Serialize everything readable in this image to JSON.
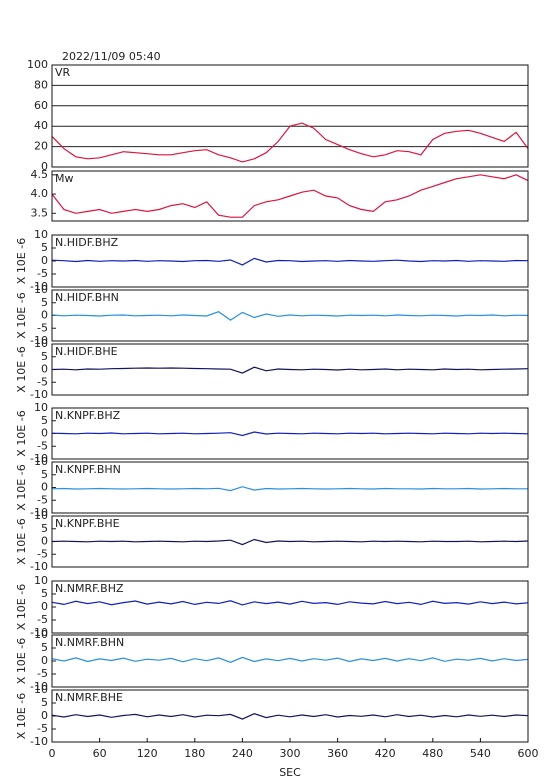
{
  "chart_data": [
    {
      "type": "line",
      "title": "2022/11/09 05:40",
      "ylim": [
        0,
        100
      ],
      "yticks": [
        0,
        20,
        40,
        60,
        80,
        100
      ],
      "grid": true,
      "x": [
        0,
        15,
        30,
        45,
        60,
        75,
        90,
        105,
        120,
        135,
        150,
        165,
        180,
        195,
        210,
        225,
        240,
        255,
        270,
        285,
        300,
        315,
        330,
        345,
        360,
        375,
        390,
        405,
        420,
        435,
        450,
        465,
        480,
        495,
        510,
        525,
        540,
        555,
        570,
        585,
        600
      ],
      "series": [
        {
          "name": "VR",
          "color": "#dc143c",
          "values": [
            30,
            18,
            10,
            8,
            9,
            12,
            15,
            14,
            13,
            12,
            12,
            14,
            16,
            17,
            12,
            9,
            5,
            8,
            14,
            25,
            40,
            43,
            38,
            27,
            22,
            17,
            13,
            10,
            12,
            16,
            15,
            12,
            27,
            33,
            35,
            36,
            33,
            29,
            25,
            34,
            18
          ]
        }
      ]
    },
    {
      "type": "line",
      "ylim": [
        3.3,
        4.6
      ],
      "yticks": [
        3.5,
        {
          "value": 4,
          "label": "4.0"
        },
        4.5
      ],
      "grid": false,
      "x": [
        0,
        15,
        30,
        45,
        60,
        75,
        90,
        105,
        120,
        135,
        150,
        165,
        180,
        195,
        210,
        225,
        240,
        255,
        270,
        285,
        300,
        315,
        330,
        345,
        360,
        375,
        390,
        405,
        420,
        435,
        450,
        465,
        480,
        495,
        510,
        525,
        540,
        555,
        570,
        585,
        600
      ],
      "series": [
        {
          "name": "Mw",
          "color": "#dc143c",
          "values": [
            4.0,
            3.6,
            3.5,
            3.55,
            3.6,
            3.5,
            3.55,
            3.6,
            3.55,
            3.6,
            3.7,
            3.75,
            3.65,
            3.8,
            3.45,
            3.4,
            3.4,
            3.7,
            3.8,
            3.85,
            3.95,
            4.05,
            4.1,
            3.95,
            3.9,
            3.7,
            3.6,
            3.55,
            3.8,
            3.85,
            3.95,
            4.1,
            4.2,
            4.3,
            4.4,
            4.45,
            4.5,
            4.45,
            4.4,
            4.5,
            4.35
          ]
        }
      ]
    },
    {
      "type": "line",
      "ylabel": "X 10E -6",
      "ylim": [
        -10,
        10
      ],
      "yticks": [
        -10,
        -5,
        0,
        5,
        10
      ],
      "x": [
        0,
        15,
        30,
        45,
        60,
        75,
        90,
        105,
        120,
        135,
        150,
        165,
        180,
        195,
        210,
        225,
        240,
        255,
        270,
        285,
        300,
        315,
        330,
        345,
        360,
        375,
        390,
        405,
        420,
        435,
        450,
        465,
        480,
        495,
        510,
        525,
        540,
        555,
        570,
        585,
        600
      ],
      "series": [
        {
          "name": "N.HIDF.BHZ",
          "color": "#1020b8",
          "values": [
            0.3,
            0.1,
            -0.2,
            0.2,
            -0.1,
            0.1,
            0.0,
            0.2,
            -0.1,
            0.1,
            0.0,
            -0.2,
            0.1,
            0.2,
            -0.1,
            0.4,
            -1.5,
            1.0,
            -0.4,
            0.2,
            0.1,
            -0.2,
            0.0,
            0.1,
            -0.1,
            0.2,
            0.0,
            -0.1,
            0.1,
            0.3,
            0.0,
            -0.2,
            0.1,
            0.0,
            0.2,
            -0.1,
            0.1,
            0.0,
            -0.1,
            0.2,
            0.1
          ]
        }
      ]
    },
    {
      "type": "line",
      "ylabel": "X 10E -6",
      "ylim": [
        -10,
        10
      ],
      "yticks": [
        -10,
        -5,
        0,
        5,
        10
      ],
      "x": [
        0,
        15,
        30,
        45,
        60,
        75,
        90,
        105,
        120,
        135,
        150,
        165,
        180,
        195,
        210,
        225,
        240,
        255,
        270,
        285,
        300,
        315,
        330,
        345,
        360,
        375,
        390,
        405,
        420,
        435,
        450,
        465,
        480,
        495,
        510,
        525,
        540,
        555,
        570,
        585,
        600
      ],
      "series": [
        {
          "name": "N.HIDF.BHN",
          "color": "#2a8fe0",
          "values": [
            0.2,
            -0.1,
            0.1,
            0.0,
            -0.2,
            0.1,
            0.2,
            -0.1,
            0.0,
            0.1,
            -0.1,
            0.2,
            0.0,
            -0.2,
            1.5,
            -1.8,
            1.2,
            -0.8,
            0.6,
            -0.3,
            0.2,
            -0.1,
            0.1,
            0.0,
            -0.2,
            0.1,
            0.0,
            0.1,
            -0.1,
            0.2,
            0.0,
            -0.1,
            0.1,
            0.0,
            -0.2,
            0.1,
            0.0,
            0.2,
            -0.1,
            0.1,
            0.0
          ]
        }
      ]
    },
    {
      "type": "line",
      "ylabel": "X 10E -6",
      "ylim": [
        -10,
        10
      ],
      "yticks": [
        -10,
        -5,
        0,
        5,
        10
      ],
      "x": [
        0,
        15,
        30,
        45,
        60,
        75,
        90,
        105,
        120,
        135,
        150,
        165,
        180,
        195,
        210,
        225,
        240,
        255,
        270,
        285,
        300,
        315,
        330,
        345,
        360,
        375,
        390,
        405,
        420,
        435,
        450,
        465,
        480,
        495,
        510,
        525,
        540,
        555,
        570,
        585,
        600
      ],
      "series": [
        {
          "name": "N.HIDF.BHE",
          "color": "#14145e",
          "values": [
            0.0,
            0.1,
            -0.1,
            0.2,
            0.1,
            0.3,
            0.4,
            0.5,
            0.6,
            0.5,
            0.6,
            0.5,
            0.4,
            0.3,
            0.2,
            0.1,
            -1.4,
            0.9,
            -0.5,
            0.2,
            0.0,
            -0.1,
            0.1,
            0.0,
            -0.2,
            0.1,
            -0.1,
            0.0,
            0.2,
            -0.1,
            0.1,
            0.0,
            -0.1,
            0.2,
            0.0,
            0.1,
            -0.1,
            0.0,
            0.1,
            0.2,
            0.3
          ]
        }
      ]
    },
    {
      "type": "line",
      "ylabel": "X 10E -6",
      "ylim": [
        -10,
        10
      ],
      "yticks": [
        -10,
        -5,
        0,
        5,
        10
      ],
      "x": [
        0,
        15,
        30,
        45,
        60,
        75,
        90,
        105,
        120,
        135,
        150,
        165,
        180,
        195,
        210,
        225,
        240,
        255,
        270,
        285,
        300,
        315,
        330,
        345,
        360,
        375,
        390,
        405,
        420,
        435,
        450,
        465,
        480,
        495,
        510,
        525,
        540,
        555,
        570,
        585,
        600
      ],
      "series": [
        {
          "name": "N.KNPF.BHZ",
          "color": "#1020b8",
          "values": [
            0.1,
            0.0,
            -0.1,
            0.1,
            0.0,
            0.2,
            -0.1,
            0.0,
            0.1,
            -0.1,
            0.0,
            0.1,
            -0.1,
            0.0,
            0.1,
            0.3,
            -0.8,
            0.6,
            -0.2,
            0.1,
            0.0,
            -0.1,
            0.1,
            0.0,
            -0.1,
            0.1,
            0.0,
            0.1,
            -0.1,
            0.0,
            0.1,
            0.0,
            -0.1,
            0.1,
            0.0,
            -0.1,
            0.1,
            0.0,
            0.1,
            0.0,
            -0.1
          ]
        }
      ]
    },
    {
      "type": "line",
      "ylabel": "X 10E -6",
      "ylim": [
        -10,
        10
      ],
      "yticks": [
        -10,
        -5,
        0,
        5,
        10
      ],
      "x": [
        0,
        15,
        30,
        45,
        60,
        75,
        90,
        105,
        120,
        135,
        150,
        165,
        180,
        195,
        210,
        225,
        240,
        255,
        270,
        285,
        300,
        315,
        330,
        345,
        360,
        375,
        390,
        405,
        420,
        435,
        450,
        465,
        480,
        495,
        510,
        525,
        540,
        555,
        570,
        585,
        600
      ],
      "series": [
        {
          "name": "N.KNPF.BHN",
          "color": "#2a8fe0",
          "values": [
            -0.5,
            -0.4,
            -0.6,
            -0.5,
            -0.4,
            -0.5,
            -0.6,
            -0.5,
            -0.4,
            -0.5,
            -0.6,
            -0.5,
            -0.4,
            -0.5,
            -0.3,
            -1.2,
            0.3,
            -1.0,
            -0.4,
            -0.6,
            -0.5,
            -0.4,
            -0.5,
            -0.6,
            -0.5,
            -0.4,
            -0.5,
            -0.6,
            -0.4,
            -0.5,
            -0.5,
            -0.6,
            -0.4,
            -0.5,
            -0.5,
            -0.4,
            -0.6,
            -0.5,
            -0.4,
            -0.5,
            -0.5
          ]
        }
      ]
    },
    {
      "type": "line",
      "ylabel": "X 10E -6",
      "ylim": [
        -10,
        10
      ],
      "yticks": [
        -10,
        -5,
        0,
        5,
        10
      ],
      "x": [
        0,
        15,
        30,
        45,
        60,
        75,
        90,
        105,
        120,
        135,
        150,
        165,
        180,
        195,
        210,
        225,
        240,
        255,
        270,
        285,
        300,
        315,
        330,
        345,
        360,
        375,
        390,
        405,
        420,
        435,
        450,
        465,
        480,
        495,
        510,
        525,
        540,
        555,
        570,
        585,
        600
      ],
      "series": [
        {
          "name": "N.KNPF.BHE",
          "color": "#14145e",
          "values": [
            0.0,
            0.1,
            0.0,
            -0.1,
            0.1,
            0.0,
            0.1,
            -0.1,
            0.0,
            0.1,
            0.0,
            -0.1,
            0.1,
            0.0,
            0.2,
            0.5,
            -1.2,
            0.8,
            -0.4,
            0.2,
            0.0,
            0.1,
            -0.1,
            0.0,
            0.1,
            0.0,
            -0.1,
            0.1,
            0.0,
            0.1,
            0.0,
            -0.1,
            0.1,
            0.0,
            0.0,
            0.1,
            -0.1,
            0.0,
            0.1,
            0.0,
            0.2
          ]
        }
      ]
    },
    {
      "type": "line",
      "ylabel": "X 10E -6",
      "ylim": [
        -10,
        10
      ],
      "yticks": [
        -10,
        -5,
        0,
        5,
        10
      ],
      "x": [
        0,
        15,
        30,
        45,
        60,
        75,
        90,
        105,
        120,
        135,
        150,
        165,
        180,
        195,
        210,
        225,
        240,
        255,
        270,
        285,
        300,
        315,
        330,
        345,
        360,
        375,
        390,
        405,
        420,
        435,
        450,
        465,
        480,
        495,
        510,
        525,
        540,
        555,
        570,
        585,
        600
      ],
      "series": [
        {
          "name": "N.NMRF.BHZ",
          "color": "#1020b8",
          "values": [
            1.8,
            1.0,
            2.2,
            1.3,
            2.0,
            0.9,
            1.7,
            2.3,
            1.1,
            1.9,
            1.2,
            2.1,
            1.0,
            1.8,
            1.4,
            2.4,
            0.8,
            2.0,
            1.3,
            1.9,
            1.1,
            2.2,
            1.4,
            1.7,
            1.0,
            2.0,
            1.5,
            1.2,
            2.1,
            1.3,
            1.8,
            1.0,
            2.2,
            1.4,
            1.7,
            1.1,
            2.0,
            1.3,
            1.9,
            1.2,
            1.6
          ]
        }
      ]
    },
    {
      "type": "line",
      "ylabel": "X 10E -6",
      "ylim": [
        -10,
        10
      ],
      "yticks": [
        -10,
        -5,
        0,
        5,
        10
      ],
      "x": [
        0,
        15,
        30,
        45,
        60,
        75,
        90,
        105,
        120,
        135,
        150,
        165,
        180,
        195,
        210,
        225,
        240,
        255,
        270,
        285,
        300,
        315,
        330,
        345,
        360,
        375,
        390,
        405,
        420,
        435,
        450,
        465,
        480,
        495,
        510,
        525,
        540,
        555,
        570,
        585,
        600
      ],
      "series": [
        {
          "name": "N.NMRF.BHN",
          "color": "#2a8fe0",
          "values": [
            0.9,
            0.0,
            1.2,
            -0.2,
            0.8,
            0.2,
            1.1,
            -0.1,
            0.7,
            0.3,
            1.0,
            -0.3,
            0.9,
            0.1,
            1.2,
            -0.5,
            1.4,
            -0.2,
            0.8,
            0.1,
            1.0,
            0.0,
            0.9,
            0.3,
            1.1,
            -0.2,
            0.8,
            0.2,
            1.0,
            0.0,
            0.9,
            0.1,
            1.2,
            -0.1,
            0.7,
            0.3,
            1.0,
            0.0,
            0.9,
            0.2,
            0.6
          ]
        }
      ]
    },
    {
      "type": "line",
      "ylabel": "X 10E -6",
      "ylim": [
        -10,
        10
      ],
      "yticks": [
        -10,
        -5,
        0,
        5,
        10
      ],
      "xlabel": "SEC",
      "xlim": [
        0,
        600
      ],
      "xticks": [
        0,
        60,
        120,
        180,
        240,
        300,
        360,
        420,
        480,
        540,
        600
      ],
      "x": [
        0,
        15,
        30,
        45,
        60,
        75,
        90,
        105,
        120,
        135,
        150,
        165,
        180,
        195,
        210,
        225,
        240,
        255,
        270,
        285,
        300,
        315,
        330,
        345,
        360,
        375,
        390,
        405,
        420,
        435,
        450,
        465,
        480,
        495,
        510,
        525,
        540,
        555,
        570,
        585,
        600
      ],
      "series": [
        {
          "name": "N.NMRF.BHE",
          "color": "#14145e",
          "values": [
            0.3,
            -0.4,
            0.5,
            -0.2,
            0.4,
            -0.5,
            0.2,
            0.6,
            -0.3,
            0.4,
            -0.2,
            0.5,
            -0.4,
            0.3,
            0.1,
            0.6,
            -1.2,
            0.9,
            -0.6,
            0.3,
            -0.3,
            0.4,
            -0.2,
            0.5,
            -0.4,
            0.2,
            -0.1,
            0.4,
            -0.3,
            0.5,
            -0.2,
            0.3,
            -0.4,
            0.2,
            -0.3,
            0.4,
            -0.1,
            0.3,
            -0.2,
            0.4,
            0.1
          ]
        }
      ]
    }
  ]
}
